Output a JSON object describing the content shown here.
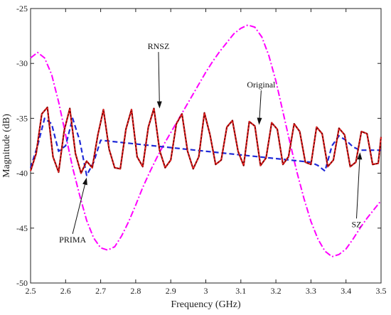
{
  "chart_data": {
    "type": "line",
    "title": "",
    "xlabel": "Frequency (GHz)",
    "ylabel": "Magnitude (dB)",
    "xlim": [
      2.5,
      3.5
    ],
    "ylim": [
      -50,
      -25
    ],
    "grid": false,
    "xticks": [
      2.5,
      2.6,
      2.7,
      2.8,
      2.9,
      3,
      3.1,
      3.2,
      3.3,
      3.4,
      3.5
    ],
    "xtick_labels": [
      "2.5",
      "2.6",
      "2.7",
      "2.8",
      "2.9",
      "3",
      "3.1",
      "3.2",
      "3.3",
      "3.4",
      "3.5"
    ],
    "yticks": [
      -50,
      -45,
      -40,
      -35,
      -30,
      -25
    ],
    "ytick_labels": [
      "-50",
      "-45",
      "-40",
      "-35",
      "-30",
      "-25"
    ],
    "series": [
      {
        "name": "Original",
        "color": "#8b0000",
        "style": "solid",
        "x": [
          2.5,
          2.516,
          2.532,
          2.548,
          2.564,
          2.58,
          2.596,
          2.612,
          2.628,
          2.644,
          2.66,
          2.676,
          2.692,
          2.708,
          2.724,
          2.74,
          2.756,
          2.772,
          2.788,
          2.804,
          2.82,
          2.836,
          2.852,
          2.868,
          2.884,
          2.9,
          2.916,
          2.932,
          2.948,
          2.964,
          2.98,
          2.996,
          3.012,
          3.028,
          3.044,
          3.06,
          3.076,
          3.092,
          3.108,
          3.124,
          3.14,
          3.156,
          3.172,
          3.188,
          3.204,
          3.22,
          3.236,
          3.252,
          3.268,
          3.284,
          3.3,
          3.316,
          3.332,
          3.348,
          3.364,
          3.38,
          3.396,
          3.412,
          3.428,
          3.444,
          3.46,
          3.476,
          3.492,
          3.5
        ],
        "y": [
          -39.8,
          -38.2,
          -34.6,
          -34.0,
          -38.5,
          -39.9,
          -36.1,
          -34.1,
          -38.2,
          -40.0,
          -38.9,
          -39.5,
          -36.5,
          -34.2,
          -37.8,
          -39.5,
          -39.6,
          -36.0,
          -34.2,
          -38.5,
          -39.4,
          -35.8,
          -34.1,
          -37.9,
          -39.5,
          -38.8,
          -35.5,
          -34.6,
          -38.0,
          -39.6,
          -38.5,
          -34.5,
          -36.5,
          -39.2,
          -38.8,
          -35.8,
          -35.2,
          -38.0,
          -39.3,
          -35.3,
          -35.7,
          -39.3,
          -38.6,
          -35.4,
          -36.0,
          -39.2,
          -38.5,
          -35.5,
          -36.2,
          -39.0,
          -39.2,
          -35.8,
          -36.4,
          -39.4,
          -38.8,
          -35.9,
          -36.5,
          -39.4,
          -39.0,
          -36.2,
          -36.4,
          -39.2,
          -39.1,
          -36.7
        ]
      },
      {
        "name": "RNSZ",
        "color": "#ff2a2a",
        "style": "dotted",
        "x": [
          2.5,
          2.516,
          2.532,
          2.548,
          2.564,
          2.58,
          2.596,
          2.612,
          2.628,
          2.644,
          2.66,
          2.676,
          2.692,
          2.708,
          2.724,
          2.74,
          2.756,
          2.772,
          2.788,
          2.804,
          2.82,
          2.836,
          2.852,
          2.868,
          2.884,
          2.9,
          2.916,
          2.932,
          2.948,
          2.964,
          2.98,
          2.996,
          3.012,
          3.028,
          3.044,
          3.06,
          3.076,
          3.092,
          3.108,
          3.124,
          3.14,
          3.156,
          3.172,
          3.188,
          3.204,
          3.22,
          3.236,
          3.252,
          3.268,
          3.284,
          3.3,
          3.316,
          3.332,
          3.348,
          3.364,
          3.38,
          3.396,
          3.412,
          3.428,
          3.444,
          3.46,
          3.476,
          3.492,
          3.5
        ],
        "y": [
          -39.8,
          -38.2,
          -34.6,
          -34.0,
          -38.5,
          -39.9,
          -36.1,
          -34.1,
          -38.2,
          -40.0,
          -38.9,
          -39.5,
          -36.5,
          -34.2,
          -37.8,
          -39.5,
          -39.6,
          -36.0,
          -34.2,
          -38.5,
          -39.4,
          -35.8,
          -34.1,
          -37.9,
          -39.5,
          -38.8,
          -35.5,
          -34.6,
          -38.0,
          -39.6,
          -38.5,
          -34.5,
          -36.5,
          -39.2,
          -38.8,
          -35.8,
          -35.2,
          -38.0,
          -39.3,
          -35.3,
          -35.7,
          -39.3,
          -38.6,
          -35.4,
          -36.0,
          -39.2,
          -38.5,
          -35.5,
          -36.2,
          -39.0,
          -39.2,
          -35.8,
          -36.4,
          -39.4,
          -38.8,
          -35.9,
          -36.5,
          -39.4,
          -39.0,
          -36.2,
          -36.4,
          -39.2,
          -39.1,
          -36.7
        ]
      },
      {
        "name": "SZ",
        "color": "#1f2ad8",
        "style": "dashed",
        "x": [
          2.5,
          2.52,
          2.54,
          2.56,
          2.58,
          2.6,
          2.62,
          2.64,
          2.66,
          2.68,
          2.7,
          3.3,
          3.32,
          3.34,
          3.36,
          3.38,
          3.4,
          3.42,
          3.44,
          3.46,
          3.48,
          3.5
        ],
        "y": [
          -39.5,
          -37.5,
          -35.0,
          -35.5,
          -38.0,
          -37.5,
          -35.0,
          -37.0,
          -40.2,
          -39.0,
          -37.0,
          -39.0,
          -39.3,
          -39.8,
          -37.5,
          -36.6,
          -37.0,
          -37.6,
          -37.9,
          -37.9,
          -37.9,
          -37.9
        ]
      },
      {
        "name": "PRIMA",
        "color": "#ff00ff",
        "style": "dashdot",
        "x": [
          2.5,
          2.52,
          2.54,
          2.56,
          2.58,
          2.6,
          2.62,
          2.64,
          2.66,
          2.68,
          2.7,
          2.72,
          2.74,
          2.76,
          2.78,
          2.8,
          2.82,
          2.84,
          2.86,
          2.88,
          2.9,
          2.92,
          2.94,
          2.96,
          2.98,
          3.0,
          3.02,
          3.04,
          3.06,
          3.08,
          3.1,
          3.12,
          3.14,
          3.16,
          3.18,
          3.2,
          3.22,
          3.24,
          3.26,
          3.28,
          3.3,
          3.32,
          3.34,
          3.36,
          3.38,
          3.4,
          3.42,
          3.44,
          3.46,
          3.48,
          3.5
        ],
        "y": [
          -29.5,
          -29.0,
          -29.5,
          -31.0,
          -33.5,
          -36.5,
          -39.5,
          -42.0,
          -44.3,
          -45.9,
          -46.8,
          -47.0,
          -46.7,
          -45.7,
          -44.4,
          -42.9,
          -41.3,
          -39.9,
          -38.6,
          -37.4,
          -36.3,
          -35.2,
          -34.1,
          -33.0,
          -31.9,
          -30.8,
          -29.8,
          -28.9,
          -28.1,
          -27.3,
          -26.8,
          -26.5,
          -26.7,
          -27.6,
          -29.3,
          -31.6,
          -34.4,
          -37.2,
          -39.9,
          -42.3,
          -44.4,
          -46.0,
          -47.1,
          -47.6,
          -47.4,
          -46.9,
          -46.0,
          -45.0,
          -44.1,
          -43.3,
          -42.5
        ]
      }
    ],
    "annotations": [
      {
        "text": "RNSZ",
        "label_x": 2.865,
        "label_y": -28.7,
        "target_x": 2.868,
        "target_y": -34.1
      },
      {
        "text": "Original",
        "label_x": 3.158,
        "label_y": -32.2,
        "target_x": 3.152,
        "target_y": -35.6
      },
      {
        "text": "PRIMA",
        "label_x": 2.62,
        "label_y": -46.3,
        "target_x": 2.66,
        "target_y": -40.4
      },
      {
        "text": "SZ",
        "label_x": 3.43,
        "label_y": -44.9,
        "target_x": 3.44,
        "target_y": -38.1
      }
    ]
  }
}
